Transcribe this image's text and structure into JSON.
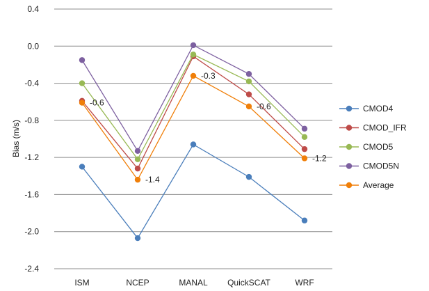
{
  "chart_data": {
    "type": "line",
    "title": "",
    "xlabel": "",
    "ylabel": "Bias (m/s)",
    "ylim": [
      -2.4,
      0.4
    ],
    "yticks": [
      0.4,
      0.0,
      -0.4,
      -0.8,
      -1.2,
      -1.6,
      -2.0,
      -2.4
    ],
    "ytick_labels": [
      "0.4",
      "0.0",
      "-0.4",
      "-0.8",
      "-1.2",
      "-1.6",
      "-2.0",
      "-2.4"
    ],
    "grid": "horizontal",
    "legend_position": "right",
    "categories": [
      "ISM",
      "NCEP",
      "MANAL",
      "QuickSCAT",
      "WRF"
    ],
    "series": [
      {
        "name": "CMOD4",
        "color": "#4a7ebb",
        "values": [
          -1.3,
          -2.07,
          -1.06,
          -1.41,
          -1.88
        ]
      },
      {
        "name": "CMOD_IFR",
        "color": "#be4b48",
        "values": [
          -0.59,
          -1.32,
          -0.11,
          -0.52,
          -1.11
        ]
      },
      {
        "name": "CMOD5",
        "color": "#98b954",
        "values": [
          -0.4,
          -1.22,
          -0.09,
          -0.38,
          -0.98
        ]
      },
      {
        "name": "CMOD5N",
        "color": "#7d60a0",
        "values": [
          -0.15,
          -1.13,
          0.01,
          -0.3,
          -0.89
        ]
      },
      {
        "name": "Average",
        "color": "#f07f09",
        "values": [
          -0.61,
          -1.44,
          -0.32,
          -0.65,
          -1.21
        ]
      }
    ],
    "annotations": [
      {
        "series": "Average",
        "category": "ISM",
        "text": "-0.6"
      },
      {
        "series": "Average",
        "category": "NCEP",
        "text": "-1.4"
      },
      {
        "series": "Average",
        "category": "MANAL",
        "text": "-0.3"
      },
      {
        "series": "Average",
        "category": "QuickSCAT",
        "text": "-0.6"
      },
      {
        "series": "Average",
        "category": "WRF",
        "text": "-1.2"
      }
    ]
  }
}
